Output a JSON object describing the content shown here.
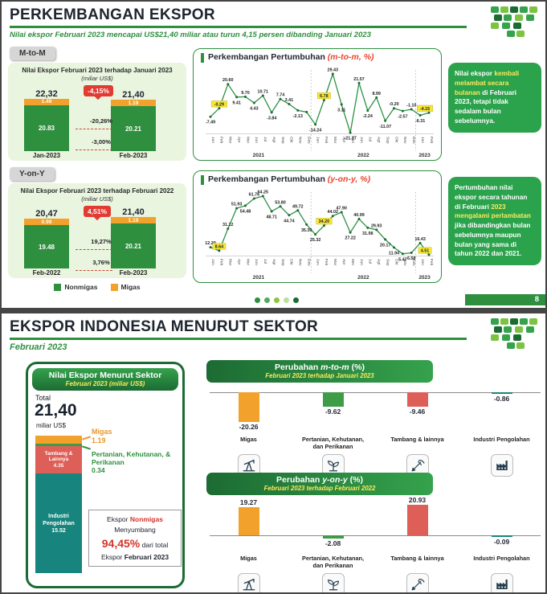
{
  "panel1": {
    "title": "PERKEMBANGAN EKSPOR",
    "subtitle": "Nilai ekspor Februari 2023 mencapai US$21,40 miliar atau turun 4,15 persen dibanding Januari 2023",
    "tab_mtom": "M-to-M",
    "tab_yoy": "Y-on-Y",
    "compare_mtom": {
      "title": "Nilai Ekspor Februari 2023 terhadap Januari 2023",
      "unit": "(miliar US$)",
      "badge": "-4,15%",
      "left_total": "22,32",
      "right_total": "21,40",
      "left_migas": "1.49",
      "left_nonmigas": "20.83",
      "right_migas": "1.19",
      "right_nonmigas": "20.21",
      "left_label": "Jan-2023",
      "right_label": "Feb-2023",
      "migas_change": "-20,26%",
      "nonmigas_change": "-3,00%"
    },
    "compare_yoy": {
      "title": "Nilai Ekspor Februari 2023 terhadap Februari 2022",
      "unit": "(miliar US$)",
      "badge": "4,51%",
      "left_total": "20,47",
      "right_total": "21,40",
      "left_migas": "0.99",
      "left_nonmigas": "19.48",
      "right_migas": "1.19",
      "right_nonmigas": "20.21",
      "left_label": "Feb-2022",
      "right_label": "Feb-2023",
      "migas_change": "19,27%",
      "nonmigas_change": "3,76%"
    },
    "legend": [
      {
        "label": "Nonmigas",
        "color": "#2E8F3F"
      },
      {
        "label": "Migas",
        "color": "#F2A22C"
      }
    ],
    "growth_mtom": {
      "title": "Perkembangan Pertumbuhan",
      "suffix": "(m-to-m, %)"
    },
    "growth_yoy": {
      "title": "Perkembangan Pertumbuhan",
      "suffix": "(y-on-y, %)"
    },
    "note_mtom": {
      "pre": "Nilai ekspor ",
      "hl": "kembali melambat secara bulanan",
      "post": " di Februari 2023, tetapi tidak sedalam bulan sebelumnya."
    },
    "note_yoy": {
      "pre": "Pertumbuhan nilai ekspor secara tahunan di Februari ",
      "hl": "2023 mengalami perlambatan",
      "post": " jika dibandingkan bulan sebelumnya maupun bulan yang sama di tahun 2022 dan 2021."
    },
    "pagination": [
      "#2E8F3F",
      "#55A860",
      "#8CC63F",
      "#BFE09A",
      "#1C6B33"
    ],
    "page_number": "8"
  },
  "panel2": {
    "title": "EKSPOR INDONESIA MENURUT SEKTOR",
    "subtitle": "Februari 2023",
    "sector_card": {
      "header": "Nilai Ekspor Menurut Sektor",
      "header_sub": "Februari 2023 (miliar US$)",
      "total_label": "Total",
      "total_value": "21,40",
      "total_unit": "miliar US$",
      "migas_name": "Migas",
      "migas_value": "1.19",
      "pertanian_name": "Pertanian, Kehutanan, & Perikanan",
      "pertanian_value": "0.34",
      "tambang_name": "Tambang & Lainnya",
      "tambang_value": "4.35",
      "industri_name": "Industri Pengolahan",
      "industri_value": "15.52",
      "note_l1a": "Ekspor ",
      "note_l1b": "Nonmigas",
      "note_l2": "Menyumbang",
      "note_pct": "94,45%",
      "note_l3": " dari total",
      "note_l4a": "Ekspor ",
      "note_l4b": "Februari 2023"
    },
    "mtom_header": {
      "a": "Perubahan ",
      "b": "m-to-m",
      "c": " (%)",
      "sub": "Februari 2023 terhadap Januari 2023"
    },
    "yoy_header": {
      "a": "Perubahan ",
      "b": "y-on-y",
      "c": " (%)",
      "sub": "Februari 2023 terhadap Februari 2022"
    }
  },
  "chart_data": [
    {
      "id": "export_mtom_comparison",
      "type": "bar",
      "title": "Nilai Ekspor Februari 2023 terhadap Januari 2023 (miliar US$)",
      "categories": [
        "Jan-2023",
        "Feb-2023"
      ],
      "series": [
        {
          "name": "Migas",
          "values": [
            1.49,
            1.19
          ],
          "color": "#F2A22C"
        },
        {
          "name": "Nonmigas",
          "values": [
            20.83,
            20.21
          ],
          "color": "#2E8F3F"
        }
      ],
      "totals": [
        22.32,
        21.4
      ],
      "total_change_pct": -4.15,
      "migas_change_pct": -20.26,
      "nonmigas_change_pct": -3.0
    },
    {
      "id": "export_yoy_comparison",
      "type": "bar",
      "title": "Nilai Ekspor Februari 2023 terhadap Februari 2022 (miliar US$)",
      "categories": [
        "Feb-2022",
        "Feb-2023"
      ],
      "series": [
        {
          "name": "Migas",
          "values": [
            0.99,
            1.19
          ],
          "color": "#F2A22C"
        },
        {
          "name": "Nonmigas",
          "values": [
            19.48,
            20.21
          ],
          "color": "#2E8F3F"
        }
      ],
      "totals": [
        20.47,
        21.4
      ],
      "total_change_pct": 4.51,
      "migas_change_pct": 19.27,
      "nonmigas_change_pct": 3.76
    },
    {
      "id": "growth_mtom",
      "type": "line",
      "title": "Perkembangan Pertumbuhan (m-to-m, %)",
      "months": [
        "Jan",
        "Feb",
        "Mar",
        "Apr",
        "Mei",
        "Jun",
        "Jul",
        "Agt",
        "Sep",
        "Okt",
        "Nov",
        "Des",
        "Jan",
        "Feb",
        "Mar",
        "Apr",
        "Mei",
        "Jun",
        "Jul",
        "Agt",
        "Sep",
        "Okt",
        "Nov",
        "Des",
        "Jan",
        "Feb"
      ],
      "years": [
        {
          "label": "2021",
          "span": 12
        },
        {
          "label": "2022",
          "span": 12
        },
        {
          "label": "2023",
          "span": 2
        }
      ],
      "values": [
        -7.49,
        -0.29,
        20.6,
        9.41,
        9.7,
        4.43,
        10.71,
        -3.84,
        7.74,
        3.41,
        -2.13,
        -3.5,
        -14.24,
        6.78,
        29.43,
        3.11,
        -21.27,
        21.57,
        -2.24,
        8.99,
        -11.07,
        -0.2,
        -2.57,
        -1.1,
        -6.31,
        -4.15
      ],
      "labels": [
        "-7.49",
        "-0.29",
        "20.60",
        "9.41",
        "9.70",
        "4.43",
        "10.71",
        "-3.84",
        "7.74",
        "3.41",
        "-2.13",
        "",
        "-14.24",
        "6.78",
        "29.43",
        "3.11",
        "-21.27",
        "21.57",
        "-2.24",
        "8.99",
        "-11.07",
        "-0.20",
        "-2.57",
        "-1.10",
        "-6.31",
        "-4.15"
      ],
      "highlight": [
        1,
        13,
        25
      ],
      "ylim": [
        -25,
        32
      ],
      "line_color": "#2E9144",
      "marker_color": "#1C6B33",
      "highlight_color": "#F6E735"
    },
    {
      "id": "growth_yoy",
      "type": "line",
      "title": "Perkembangan Pertumbuhan (y-on-y, %)",
      "months": [
        "Jan",
        "Feb",
        "Mar",
        "Apr",
        "Mei",
        "Jun",
        "Jul",
        "Agt",
        "Sep",
        "Okt",
        "Nov",
        "Des",
        "Jan",
        "Feb",
        "Mar",
        "Apr",
        "Mei",
        "Jun",
        "Jul",
        "Agt",
        "Sep",
        "Okt",
        "Nov",
        "Des",
        "Jan",
        "Feb"
      ],
      "years": [
        {
          "label": "2021",
          "span": 12
        },
        {
          "label": "2022",
          "span": 12
        },
        {
          "label": "2023",
          "span": 2
        }
      ],
      "values": [
        12.2,
        8.64,
        31.12,
        51.93,
        54.48,
        61.76,
        64.25,
        48.71,
        53.8,
        44.74,
        49.72,
        35.3,
        25.32,
        34.2,
        44.02,
        47.9,
        27.22,
        40.99,
        31.98,
        29.93,
        20.17,
        11.94,
        5.47,
        6.58,
        16.43,
        4.51
      ],
      "labels": [
        "12.20",
        "8.64",
        "31.12",
        "51.93",
        "54.48",
        "61.76",
        "64.25",
        "48.71",
        "53.80",
        "44.74",
        "49.72",
        "35.30",
        "25.32",
        "34.20",
        "44.02",
        "47.90",
        "27.22",
        "40.99",
        "31.98",
        "29.93",
        "20.17",
        "11.94",
        "5.47",
        "6.58",
        "16.43",
        "4.51"
      ],
      "highlight": [
        1,
        13,
        25
      ],
      "ylim": [
        0,
        68
      ],
      "line_color": "#2E9144",
      "marker_color": "#1C6B33",
      "highlight_color": "#F6E735"
    },
    {
      "id": "sector_composition",
      "type": "bar",
      "title": "Nilai Ekspor Menurut Sektor Februari 2023 (miliar US$)",
      "total": 21.4,
      "segments": [
        {
          "name": "Migas",
          "value": 1.19,
          "color": "#F2A22C"
        },
        {
          "name": "Pertanian, Kehutanan, & Perikanan",
          "value": 0.34,
          "color": "#3F9C46"
        },
        {
          "name": "Tambang & Lainnya",
          "value": 4.35,
          "color": "#DE5F58"
        },
        {
          "name": "Industri Pengolahan",
          "value": 15.52,
          "color": "#17857D"
        }
      ],
      "nonmigas_share_pct": "94,45%"
    },
    {
      "id": "sector_growth_mtom",
      "type": "bar",
      "title": "Perubahan m-to-m (%)",
      "subtitle": "Februari 2023 terhadap Januari 2023",
      "categories": [
        "Migas",
        "Pertanian, Kehutanan, dan Perikanan",
        "Tambang & lainnya",
        "Industri Pengolahan"
      ],
      "values": [
        -20.26,
        -9.62,
        -9.46,
        -0.86
      ],
      "value_labels": [
        "-20.26",
        "-9.62",
        "-9.46",
        "-0.86"
      ],
      "colors": [
        "#F2A22C",
        "#3F9C46",
        "#DE5F58",
        "#17857D"
      ],
      "icons": [
        "oil-pump-icon",
        "plant-icon",
        "pickaxe-icon",
        "factory-icon"
      ]
    },
    {
      "id": "sector_growth_yoy",
      "type": "bar",
      "title": "Perubahan y-on-y (%)",
      "subtitle": "Februari 2023 terhadap Februari 2022",
      "categories": [
        "Migas",
        "Pertanian, Kehutanan, dan Perikanan",
        "Tambang & lainnya",
        "Industri Pengolahan"
      ],
      "values": [
        19.27,
        -2.08,
        20.93,
        -0.09
      ],
      "value_labels": [
        "19.27",
        "-2.08",
        "20.93",
        "-0.09"
      ],
      "colors": [
        "#F2A22C",
        "#3F9C46",
        "#DE5F58",
        "#17857D"
      ],
      "icons": [
        "oil-pump-icon",
        "plant-icon",
        "pickaxe-icon",
        "factory-icon"
      ]
    }
  ]
}
